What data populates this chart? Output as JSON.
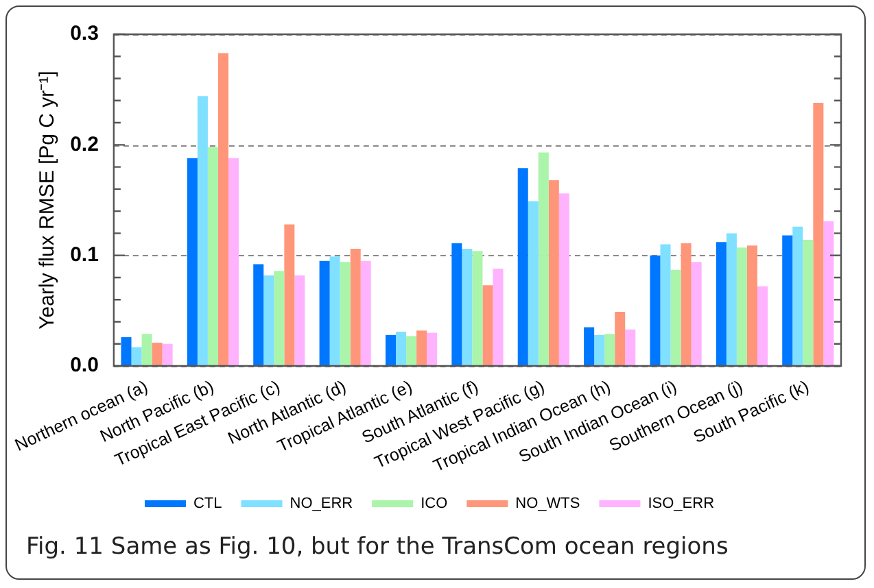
{
  "chart_data": {
    "type": "bar",
    "ylabel": "Yearly flux RMSE [Pg C yr⁻¹]",
    "categories": [
      "Northern ocean (a)",
      "North Pacific (b)",
      "Tropical East Pacific (c)",
      "North Atlantic (d)",
      "Tropical Atlantic (e)",
      "South Atlantic (f)",
      "Tropical West Pacific (g)",
      "Tropical Indian Ocean (h)",
      "South Indian Ocean (i)",
      "Southern Ocean (j)",
      "South Pacific (k)"
    ],
    "series": [
      {
        "name": "CTL",
        "color": "#0077ff",
        "values": [
          0.026,
          0.188,
          0.092,
          0.095,
          0.028,
          0.111,
          0.179,
          0.035,
          0.1,
          0.112,
          0.118
        ]
      },
      {
        "name": "NO_ERR",
        "color": "#80e0ff",
        "values": [
          0.017,
          0.244,
          0.082,
          0.099,
          0.031,
          0.106,
          0.149,
          0.028,
          0.11,
          0.12,
          0.126
        ]
      },
      {
        "name": "ICO",
        "color": "#aaf5aa",
        "values": [
          0.029,
          0.198,
          0.086,
          0.094,
          0.027,
          0.104,
          0.193,
          0.029,
          0.087,
          0.107,
          0.114
        ]
      },
      {
        "name": "NO_WTS",
        "color": "#ff967a",
        "values": [
          0.021,
          0.283,
          0.128,
          0.106,
          0.032,
          0.073,
          0.168,
          0.049,
          0.111,
          0.109,
          0.238
        ]
      },
      {
        "name": "ISO_ERR",
        "color": "#ffb3ff",
        "values": [
          0.02,
          0.188,
          0.082,
          0.095,
          0.03,
          0.088,
          0.156,
          0.033,
          0.094,
          0.072,
          0.131
        ]
      }
    ],
    "ylim": [
      0,
      0.3
    ],
    "yticks": [
      {
        "value": 0,
        "label": "0.0"
      },
      {
        "value": 0.02,
        "label": null
      },
      {
        "value": 0.04,
        "label": null
      },
      {
        "value": 0.06,
        "label": null
      },
      {
        "value": 0.08,
        "label": null
      },
      {
        "value": 0.1,
        "label": "0.1"
      },
      {
        "value": 0.12,
        "label": null
      },
      {
        "value": 0.14,
        "label": null
      },
      {
        "value": 0.16,
        "label": null
      },
      {
        "value": 0.18,
        "label": null
      },
      {
        "value": 0.2,
        "label": "0.2"
      },
      {
        "value": 0.22,
        "label": null
      },
      {
        "value": 0.24,
        "label": null
      },
      {
        "value": 0.26,
        "label": null
      },
      {
        "value": 0.28,
        "label": null
      },
      {
        "value": 0.3,
        "label": "0.3"
      }
    ],
    "grid": "y",
    "legend": "bottom",
    "annotations": [
      "Fig. 11 Same as Fig. 10, but for the TransCom ocean regions"
    ]
  }
}
